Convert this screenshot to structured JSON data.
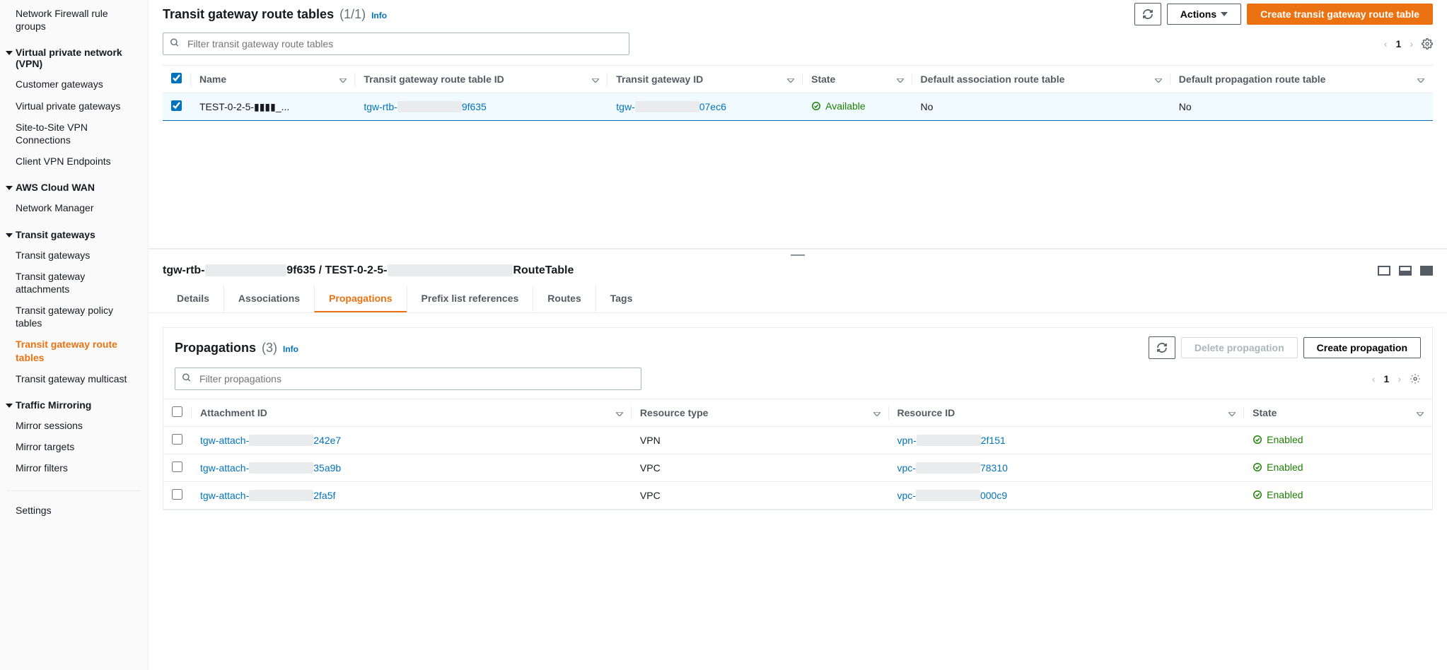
{
  "sidebar": {
    "groups": [
      {
        "items": [
          {
            "label": "Network Firewall rule groups"
          }
        ]
      },
      {
        "header": "Virtual private network (VPN)",
        "items": [
          {
            "label": "Customer gateways"
          },
          {
            "label": "Virtual private gateways"
          },
          {
            "label": "Site-to-Site VPN Connections"
          },
          {
            "label": "Client VPN Endpoints"
          }
        ]
      },
      {
        "header": "AWS Cloud WAN",
        "items": [
          {
            "label": "Network Manager"
          }
        ]
      },
      {
        "header": "Transit gateways",
        "items": [
          {
            "label": "Transit gateways"
          },
          {
            "label": "Transit gateway attachments"
          },
          {
            "label": "Transit gateway policy tables"
          },
          {
            "label": "Transit gateway route tables",
            "active": true
          },
          {
            "label": "Transit gateway multicast"
          }
        ]
      },
      {
        "header": "Traffic Mirroring",
        "items": [
          {
            "label": "Mirror sessions"
          },
          {
            "label": "Mirror targets"
          },
          {
            "label": "Mirror filters"
          }
        ]
      }
    ],
    "settings": "Settings"
  },
  "header": {
    "title": "Transit gateway route tables",
    "count": "(1/1)",
    "info": "Info",
    "actions": "Actions",
    "create": "Create transit gateway route table",
    "filterPlaceholder": "Filter transit gateway route tables",
    "page": "1"
  },
  "mainTable": {
    "columns": [
      "Name",
      "Transit gateway route table ID",
      "Transit gateway ID",
      "State",
      "Default association route table",
      "Default propagation route table"
    ],
    "row": {
      "name": "TEST-0-2-5-▮▮▮▮_...",
      "rtPrefix": "tgw-rtb-",
      "rtSuffix": "9f635",
      "gwPrefix": "tgw-",
      "gwSuffix": "07ec6",
      "state": "Available",
      "assoc": "No",
      "prop": "No"
    }
  },
  "detail": {
    "breadcrumbPrefix": "tgw-rtb-",
    "breadcrumbMid": "9f635 / TEST-0-2-5-",
    "breadcrumbSuffix": "RouteTable",
    "tabs": [
      "Details",
      "Associations",
      "Propagations",
      "Prefix list references",
      "Routes",
      "Tags"
    ],
    "activeTab": 2
  },
  "propagations": {
    "title": "Propagations",
    "count": "(3)",
    "info": "Info",
    "delete": "Delete propagation",
    "create": "Create propagation",
    "filterPlaceholder": "Filter propagations",
    "page": "1",
    "columns": [
      "Attachment ID",
      "Resource type",
      "Resource ID",
      "State"
    ],
    "rows": [
      {
        "attPrefix": "tgw-attach-",
        "attSuffix": "242e7",
        "type": "VPN",
        "resPrefix": "vpn-",
        "resSuffix": "2f151",
        "state": "Enabled"
      },
      {
        "attPrefix": "tgw-attach-",
        "attSuffix": "35a9b",
        "type": "VPC",
        "resPrefix": "vpc-",
        "resSuffix": "78310",
        "state": "Enabled"
      },
      {
        "attPrefix": "tgw-attach-",
        "attSuffix": "2fa5f",
        "type": "VPC",
        "resPrefix": "vpc-",
        "resSuffix": "000c9",
        "state": "Enabled"
      }
    ]
  }
}
